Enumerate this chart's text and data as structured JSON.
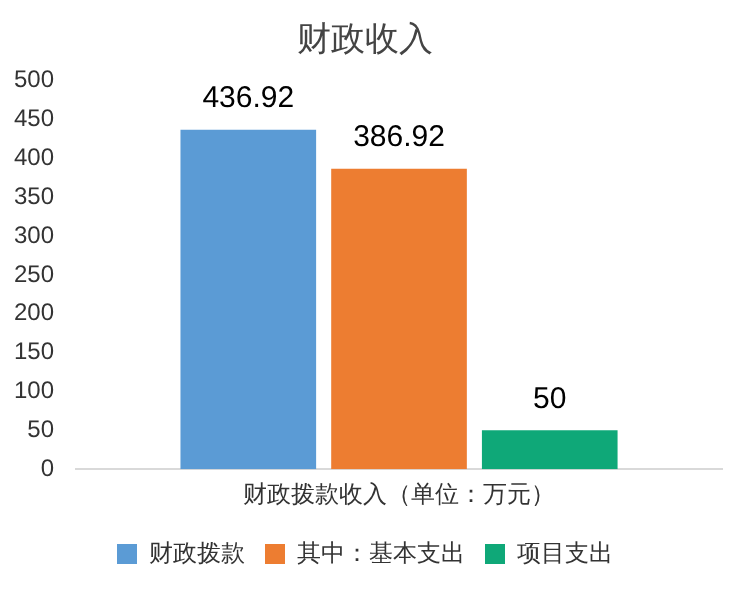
{
  "chart_data": {
    "type": "bar",
    "title": "财政收入",
    "categories": [
      "财政拨款收入（单位：万元）"
    ],
    "series": [
      {
        "name": "财政拨款",
        "color": "#5b9bd5",
        "values": [
          436.92
        ]
      },
      {
        "name": "其中：基本支出",
        "color": "#ed7d31",
        "values": [
          386.92
        ]
      },
      {
        "name": "项目支出",
        "color": "#0fa878",
        "values": [
          50
        ]
      }
    ],
    "ylim": [
      0,
      500
    ],
    "yticks": [
      0,
      50,
      100,
      150,
      200,
      250,
      300,
      350,
      400,
      450,
      500
    ],
    "grid": false,
    "legend": "bottom",
    "data_labels": true
  }
}
